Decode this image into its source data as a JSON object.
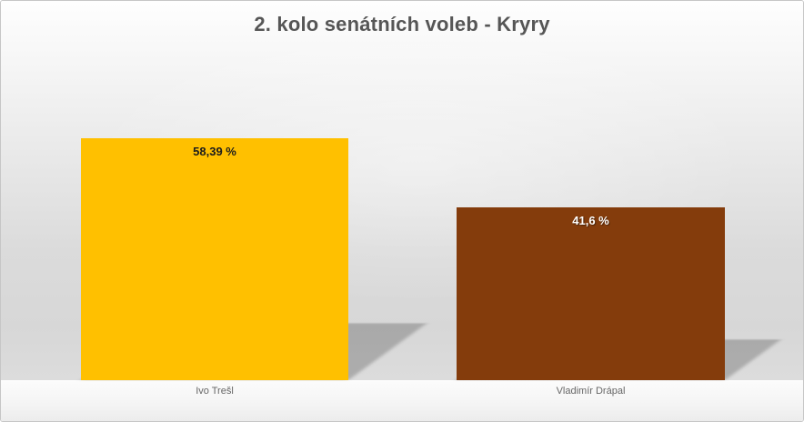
{
  "title": "2. kolo senátních voleb - Kryry",
  "chart_data": {
    "type": "bar",
    "title": "2. kolo senátních voleb - Kryry",
    "categories": [
      "Ivo Trešl",
      "Vladimír Drápal"
    ],
    "values": [
      58.39,
      41.6
    ],
    "value_labels": [
      "58,39 %",
      "41,6 %"
    ],
    "bar_colors": [
      "#FFC000",
      "#843C0C"
    ],
    "value_label_colors": [
      "#1C1C1C",
      "#FFFFFF"
    ],
    "xlabel": "",
    "ylabel": "",
    "axes_visible": false,
    "grid": false,
    "legend": false
  },
  "colors": {
    "title_text": "#565656",
    "category_text": "#666666",
    "background_top": "#FEFEFE",
    "background_bottom_gray": "#D7D7D7",
    "strip_background": "#F4F4F4",
    "frame_border": "#C6C6C6"
  }
}
